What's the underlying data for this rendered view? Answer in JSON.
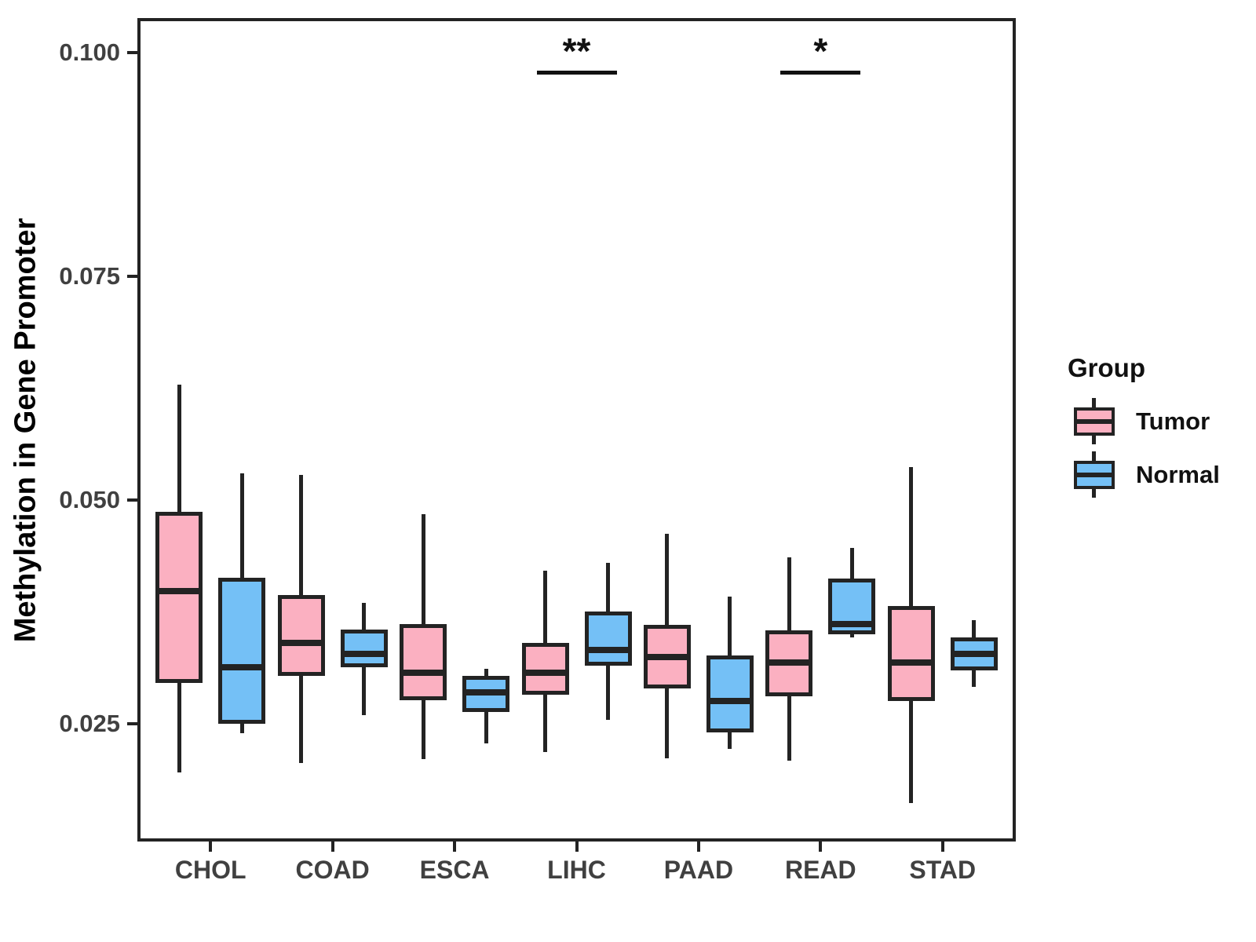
{
  "figure": {
    "background": "#ffffff",
    "ylabel": "Methylation in Gene Promoter",
    "legend": {
      "title": "Group",
      "items": [
        {
          "label": "Tumor",
          "color": "#FBB0C1"
        },
        {
          "label": "Normal",
          "color": "#74C0F6"
        }
      ]
    }
  },
  "chart_data": {
    "type": "grouped_boxplot",
    "title": "",
    "xlabel": "",
    "ylabel": "Methylation in Gene Promoter",
    "categories": [
      "CHOL",
      "COAD",
      "ESCA",
      "LIHC",
      "PAAD",
      "READ",
      "STAD"
    ],
    "ylim": [
      0.0118,
      0.1039
    ],
    "yticks": {
      "values": [
        0.025,
        0.05,
        0.075,
        0.1
      ],
      "labels": [
        "0.025",
        "0.050",
        "0.075",
        "0.100"
      ]
    },
    "grid": false,
    "legend_position": "right",
    "box_border_color": "#232323",
    "series": [
      {
        "name": "Tumor",
        "color": "#FBB0C1",
        "boxes": [
          {
            "category": "CHOL",
            "whisker_low": 0.0195,
            "q1": 0.0295,
            "median": 0.0398,
            "q3": 0.0487,
            "whisker_high": 0.0629
          },
          {
            "category": "COAD",
            "whisker_low": 0.0206,
            "q1": 0.0303,
            "median": 0.034,
            "q3": 0.0394,
            "whisker_high": 0.0528
          },
          {
            "category": "ESCA",
            "whisker_low": 0.021,
            "q1": 0.0276,
            "median": 0.0307,
            "q3": 0.0361,
            "whisker_high": 0.0484
          },
          {
            "category": "LIHC",
            "whisker_low": 0.0218,
            "q1": 0.0282,
            "median": 0.0307,
            "q3": 0.034,
            "whisker_high": 0.0421
          },
          {
            "category": "PAAD",
            "whisker_low": 0.0211,
            "q1": 0.0289,
            "median": 0.0324,
            "q3": 0.036,
            "whisker_high": 0.0462
          },
          {
            "category": "READ",
            "whisker_low": 0.0208,
            "q1": 0.028,
            "median": 0.0318,
            "q3": 0.0354,
            "whisker_high": 0.0436
          },
          {
            "category": "STAD",
            "whisker_low": 0.0161,
            "q1": 0.0275,
            "median": 0.0318,
            "q3": 0.0381,
            "whisker_high": 0.0537
          }
        ]
      },
      {
        "name": "Normal",
        "color": "#74C0F6",
        "boxes": [
          {
            "category": "CHOL",
            "whisker_low": 0.0239,
            "q1": 0.025,
            "median": 0.0313,
            "q3": 0.0413,
            "whisker_high": 0.053
          },
          {
            "category": "COAD",
            "whisker_low": 0.0259,
            "q1": 0.0313,
            "median": 0.0328,
            "q3": 0.0355,
            "whisker_high": 0.0385
          },
          {
            "category": "ESCA",
            "whisker_low": 0.0228,
            "q1": 0.0263,
            "median": 0.0285,
            "q3": 0.0303,
            "whisker_high": 0.0311
          },
          {
            "category": "LIHC",
            "whisker_low": 0.0254,
            "q1": 0.0315,
            "median": 0.0332,
            "q3": 0.0375,
            "whisker_high": 0.043
          },
          {
            "category": "PAAD",
            "whisker_low": 0.0222,
            "q1": 0.024,
            "median": 0.0275,
            "q3": 0.0326,
            "whisker_high": 0.0392
          },
          {
            "category": "READ",
            "whisker_low": 0.0346,
            "q1": 0.035,
            "median": 0.0361,
            "q3": 0.0412,
            "whisker_high": 0.0446
          },
          {
            "category": "STAD",
            "whisker_low": 0.0291,
            "q1": 0.0309,
            "median": 0.0328,
            "q3": 0.0346,
            "whisker_high": 0.0366
          }
        ]
      }
    ],
    "significance": [
      {
        "category": "LIHC",
        "label": "**",
        "bar_y": 0.0978
      },
      {
        "category": "READ",
        "label": "*",
        "bar_y": 0.0978
      }
    ]
  }
}
